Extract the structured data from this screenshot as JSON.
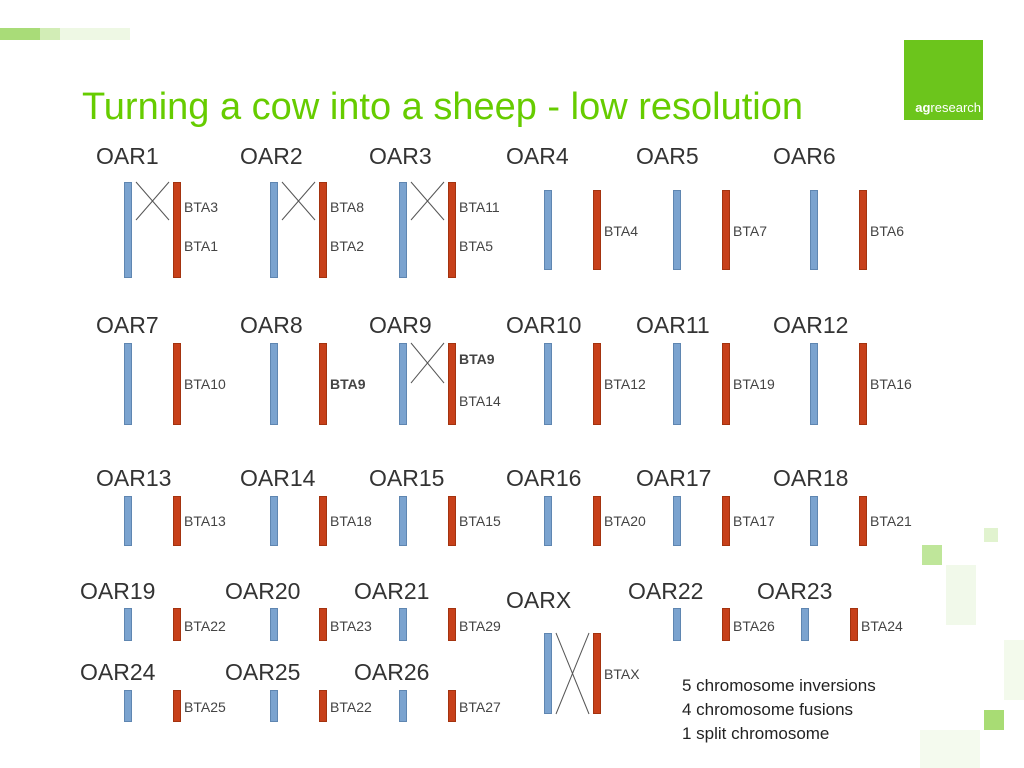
{
  "title": "Turning a cow into a sheep - low resolution",
  "logo": {
    "brand_bold": "ag",
    "brand_rest": "research",
    "color": "#6cc51c"
  },
  "colors": {
    "title": "#66cc00",
    "sheep_chromosome": "#7ba3cf",
    "cow_chromosome": "#c7401a"
  },
  "rows": [
    {
      "oar": [
        "OAR1",
        "OAR2",
        "OAR3",
        "OAR4",
        "OAR5",
        "OAR6"
      ],
      "bta": [
        [
          "BTA3",
          "BTA1"
        ],
        [
          "BTA8",
          "BTA2"
        ],
        [
          "BTA11",
          "BTA5"
        ],
        [
          "BTA4"
        ],
        [
          "BTA7"
        ],
        [
          "BTA6"
        ]
      ]
    },
    {
      "oar": [
        "OAR7",
        "OAR8",
        "OAR9",
        "OAR10",
        "OAR11",
        "OAR12"
      ],
      "bta": [
        [
          "BTA10"
        ],
        [
          "BTA9"
        ],
        [
          "BTA9",
          "BTA14"
        ],
        [
          "BTA12"
        ],
        [
          "BTA19"
        ],
        [
          "BTA16"
        ]
      ]
    },
    {
      "oar": [
        "OAR13",
        "OAR14",
        "OAR15",
        "OAR16",
        "OAR17",
        "OAR18"
      ],
      "bta": [
        [
          "BTA13"
        ],
        [
          "BTA18"
        ],
        [
          "BTA15"
        ],
        [
          "BTA20"
        ],
        [
          "BTA17"
        ],
        [
          "BTA21"
        ]
      ]
    },
    {
      "oar": [
        "OAR19",
        "OAR20",
        "OAR21",
        "OARX",
        "OAR22",
        "OAR23"
      ],
      "bta": [
        [
          "BTA22"
        ],
        [
          "BTA23"
        ],
        [
          "BTA29"
        ],
        [
          "BTAX"
        ],
        [
          "BTA26"
        ],
        [
          "BTA24"
        ]
      ]
    },
    {
      "oar": [
        "OAR24",
        "OAR25",
        "OAR26"
      ],
      "bta": [
        [
          "BTA25"
        ],
        [
          "BTA22"
        ],
        [
          "BTA27"
        ]
      ]
    }
  ],
  "summary": [
    "5 chromosome inversions",
    "4 chromosome fusions",
    "1 split chromosome"
  ]
}
